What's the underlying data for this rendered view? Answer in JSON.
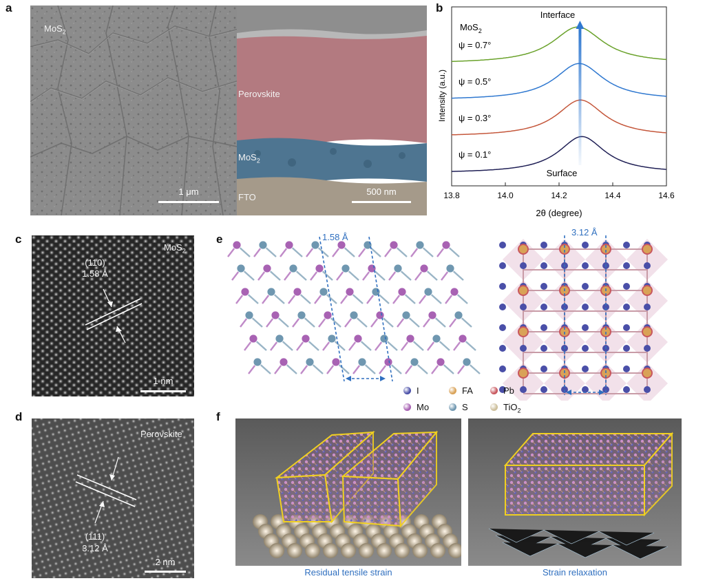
{
  "panels": {
    "a": {
      "letter": "a",
      "left_image": {
        "label_main": "MoS",
        "label_sub": "2",
        "scale": "1 μm"
      },
      "right_image": {
        "layers": {
          "perovskite": "Perovskite",
          "mos2_main": "MoS",
          "mos2_sub": "2",
          "fto": "FTO"
        },
        "scale": "500 nm"
      }
    },
    "b": {
      "letter": "b"
    },
    "c": {
      "letter": "c",
      "label_main": "MoS",
      "label_sub": "2",
      "plane": "(110)",
      "spacing": "1.58 Å",
      "scale": "1 nm"
    },
    "d": {
      "letter": "d",
      "label": "Perovskite",
      "plane": "(111)",
      "spacing": "3.12 Å",
      "scale": "2 nm"
    },
    "e": {
      "letter": "e",
      "left_spacing": "1.58 Å",
      "right_spacing": "3.12 Å",
      "legend": [
        {
          "label": "I",
          "color": "#4a4fa8"
        },
        {
          "label": "FA",
          "color": "#d9a257"
        },
        {
          "label": "Pb",
          "color": "#c8575e"
        },
        {
          "label": "Mo",
          "color": "#a862b3"
        },
        {
          "label": "S",
          "color": "#6f97b0"
        },
        {
          "label": "TiO",
          "sub": "2",
          "color": "#cdbf9b"
        }
      ]
    },
    "f": {
      "letter": "f",
      "left_caption": "Residual tensile strain",
      "right_caption": "Strain relaxation"
    }
  },
  "chart_data": {
    "type": "line",
    "title_main": "MoS",
    "title_sub": "2",
    "xlabel": "2θ (degree)",
    "ylabel": "Intensity (a.u.)",
    "xlim": [
      13.8,
      14.6
    ],
    "xticks": [
      "13.8",
      "14.0",
      "14.2",
      "14.4",
      "14.6"
    ],
    "annotations": {
      "top": "Interface",
      "bottom": "Surface"
    },
    "series": [
      {
        "name": "ψ = 0.7°",
        "color": "#6aa22b",
        "peak": 14.27,
        "width": 0.115,
        "base": 0.0,
        "height": 1.0,
        "offset": 3.0
      },
      {
        "name": "ψ = 0.5°",
        "color": "#2f78d0",
        "peak": 14.275,
        "width": 0.11,
        "base": 0.0,
        "height": 1.0,
        "offset": 2.0
      },
      {
        "name": "ψ = 0.3°",
        "color": "#c4563a",
        "peak": 14.28,
        "width": 0.108,
        "base": 0.0,
        "height": 1.0,
        "offset": 1.0
      },
      {
        "name": "ψ = 0.1°",
        "color": "#1f1f55",
        "peak": 14.285,
        "width": 0.105,
        "base": 0.0,
        "height": 1.0,
        "offset": 0.0
      }
    ]
  }
}
